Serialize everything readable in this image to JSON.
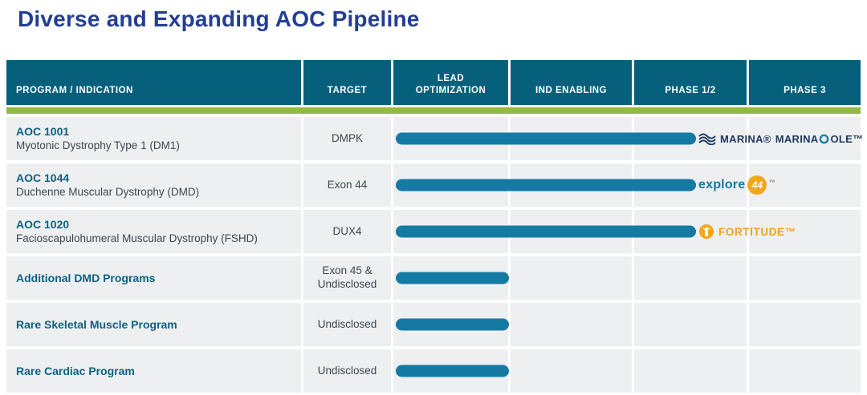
{
  "title": "Diverse and Expanding AOC Pipeline",
  "colors": {
    "title": "#233e93",
    "header_bg": "#06607c",
    "accent_green": "#93b944",
    "row_bg": "#edeff1",
    "bar": "#1479a3",
    "program": "#0b6283",
    "body_text": "#3e474f",
    "logo_navy": "#1d3a63",
    "logo_orange": "#f2a71b"
  },
  "table": {
    "columns": [
      "PROGRAM / INDICATION",
      "TARGET",
      "LEAD OPTIMIZATION",
      "IND ENABLING",
      "PHASE 1/2",
      "PHASE 3"
    ],
    "rows": [
      {
        "program": "AOC 1001",
        "indication": "Myotonic Dystrophy Type 1 (DM1)",
        "target": "DMPK",
        "stage": "Phase 1/2",
        "logo": "marina"
      },
      {
        "program": "AOC 1044",
        "indication": "Duchenne Muscular Dystrophy (DMD)",
        "target": "Exon 44",
        "stage": "Phase 1/2",
        "logo": "explore44"
      },
      {
        "program": "AOC 1020",
        "indication": "Facioscapulohumeral Muscular Dystrophy (FSHD)",
        "target": "DUX4",
        "stage": "Phase 1/2",
        "logo": "fortitude"
      },
      {
        "program": "Additional DMD Programs",
        "indication": "",
        "target": "Exon 45 & Undisclosed",
        "stage": "Lead Optimization",
        "logo": ""
      },
      {
        "program": "Rare Skeletal Muscle Program",
        "indication": "",
        "target": "Undisclosed",
        "stage": "Lead Optimization",
        "logo": ""
      },
      {
        "program": "Rare Cardiac Program",
        "indication": "",
        "target": "Undisclosed",
        "stage": "Lead Optimization",
        "logo": ""
      }
    ]
  },
  "logos": {
    "marina": {
      "labels": [
        "MARINA®",
        "MARINA",
        "OLE™"
      ]
    },
    "explore44": {
      "prefix": "explore",
      "badge": "44",
      "tm": "™"
    },
    "fortitude": {
      "label": "FORTITUDE™"
    }
  },
  "chart_data": {
    "type": "table",
    "title": "Diverse and Expanding AOC Pipeline",
    "columns": [
      "PROGRAM / INDICATION",
      "TARGET",
      "LEAD OPTIMIZATION",
      "IND ENABLING",
      "PHASE 1/2",
      "PHASE 3"
    ],
    "rows": [
      {
        "program": "AOC 1001",
        "indication": "Myotonic Dystrophy Type 1 (DM1)",
        "target": "DMPK",
        "progress_through": "Phase 1/2",
        "trial_badges": "MARINA® MARINA-OLE™"
      },
      {
        "program": "AOC 1044",
        "indication": "Duchenne Muscular Dystrophy (DMD)",
        "target": "Exon 44",
        "progress_through": "Phase 1/2",
        "trial_badges": "explore44™"
      },
      {
        "program": "AOC 1020",
        "indication": "Facioscapulohumeral Muscular Dystrophy (FSHD)",
        "target": "DUX4",
        "progress_through": "Phase 1/2",
        "trial_badges": "FORTITUDE™"
      },
      {
        "program": "Additional DMD Programs",
        "indication": "",
        "target": "Exon 45 & Undisclosed",
        "progress_through": "Lead Optimization",
        "trial_badges": ""
      },
      {
        "program": "Rare Skeletal Muscle Program",
        "indication": "",
        "target": "Undisclosed",
        "progress_through": "Lead Optimization",
        "trial_badges": ""
      },
      {
        "program": "Rare Cardiac Program",
        "indication": "",
        "target": "Undisclosed",
        "progress_through": "Lead Optimization",
        "trial_badges": ""
      }
    ],
    "legend_position": "none",
    "grid": false
  }
}
